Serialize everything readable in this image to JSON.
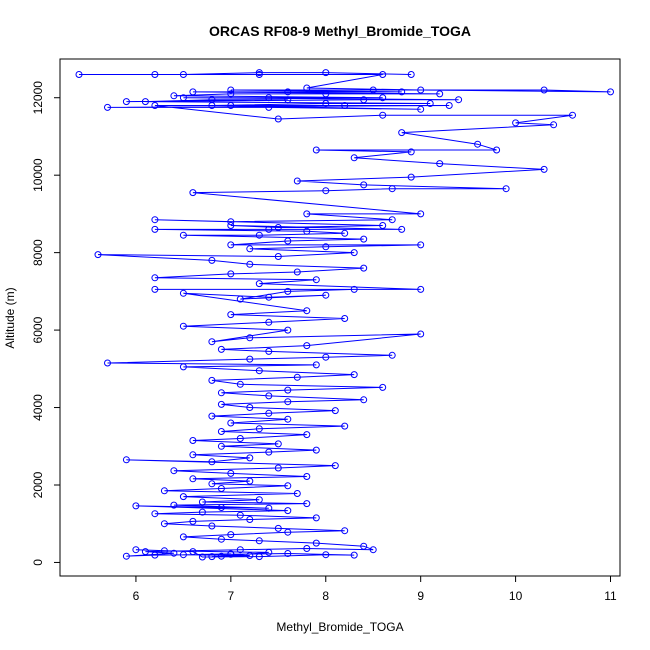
{
  "chart_data": {
    "type": "line",
    "title": "ORCAS RF08-9 Methyl_Bromide_TOGA",
    "xlabel": "Methyl_Bromide_TOGA",
    "ylabel": "Altitude (m)",
    "xlim": [
      5.2,
      11.1
    ],
    "ylim": [
      -350,
      13000
    ],
    "xticks": [
      6,
      7,
      8,
      9,
      10,
      11
    ],
    "yticks": [
      0,
      2000,
      4000,
      6000,
      8000,
      10000,
      12000
    ],
    "grid": false,
    "legend": "none",
    "marker": "open-circle",
    "series_color": "#0000ff",
    "series": [
      {
        "points": [
          [
            6.8,
            150
          ],
          [
            7.2,
            180
          ],
          [
            6.5,
            200
          ],
          [
            7.0,
            220
          ],
          [
            6.9,
            160
          ],
          [
            7.4,
            260
          ],
          [
            6.3,
            300
          ],
          [
            6.0,
            330
          ],
          [
            6.6,
            280
          ],
          [
            6.7,
            140
          ],
          [
            7.3,
            150
          ],
          [
            8.0,
            200
          ],
          [
            8.3,
            190
          ],
          [
            7.6,
            230
          ],
          [
            7.0,
            210
          ],
          [
            6.2,
            190
          ],
          [
            5.9,
            160
          ],
          [
            6.4,
            240
          ],
          [
            6.1,
            280
          ],
          [
            7.1,
            330
          ],
          [
            7.8,
            360
          ],
          [
            8.5,
            330
          ],
          [
            8.4,
            420
          ],
          [
            7.9,
            500
          ],
          [
            7.3,
            560
          ],
          [
            6.9,
            600
          ],
          [
            6.5,
            660
          ],
          [
            7.0,
            720
          ],
          [
            7.6,
            780
          ],
          [
            8.2,
            820
          ],
          [
            7.5,
            880
          ],
          [
            6.8,
            940
          ],
          [
            6.3,
            1000
          ],
          [
            6.6,
            1060
          ],
          [
            7.2,
            1110
          ],
          [
            7.9,
            1150
          ],
          [
            7.1,
            1220
          ],
          [
            6.2,
            1260
          ],
          [
            6.7,
            1300
          ],
          [
            7.6,
            1340
          ],
          [
            6.0,
            1460
          ],
          [
            6.9,
            1420
          ],
          [
            7.4,
            1400
          ],
          [
            6.4,
            1480
          ],
          [
            7.8,
            1520
          ],
          [
            6.7,
            1560
          ],
          [
            7.3,
            1620
          ],
          [
            6.5,
            1700
          ],
          [
            7.7,
            1780
          ],
          [
            6.3,
            1850
          ],
          [
            6.9,
            1910
          ],
          [
            7.6,
            1980
          ],
          [
            6.8,
            2030
          ],
          [
            7.2,
            2100
          ],
          [
            6.6,
            2160
          ],
          [
            7.8,
            2220
          ],
          [
            7.0,
            2300
          ],
          [
            6.4,
            2370
          ],
          [
            7.5,
            2440
          ],
          [
            8.1,
            2500
          ],
          [
            5.9,
            2650
          ],
          [
            6.8,
            2600
          ],
          [
            7.2,
            2700
          ],
          [
            6.6,
            2780
          ],
          [
            7.4,
            2850
          ],
          [
            7.9,
            2900
          ],
          [
            6.9,
            3000
          ],
          [
            7.5,
            3060
          ],
          [
            6.6,
            3150
          ],
          [
            7.1,
            3200
          ],
          [
            7.8,
            3300
          ],
          [
            6.9,
            3380
          ],
          [
            7.3,
            3450
          ],
          [
            8.2,
            3520
          ],
          [
            7.0,
            3600
          ],
          [
            7.6,
            3700
          ],
          [
            6.8,
            3780
          ],
          [
            7.4,
            3850
          ],
          [
            8.1,
            3920
          ],
          [
            7.2,
            4000
          ],
          [
            6.9,
            4080
          ],
          [
            7.6,
            4150
          ],
          [
            8.4,
            4200
          ],
          [
            7.4,
            4300
          ],
          [
            6.9,
            4380
          ],
          [
            7.6,
            4450
          ],
          [
            8.6,
            4520
          ],
          [
            7.1,
            4600
          ],
          [
            6.8,
            4700
          ],
          [
            7.7,
            4780
          ],
          [
            8.3,
            4850
          ],
          [
            7.3,
            4950
          ],
          [
            6.5,
            5050
          ],
          [
            7.9,
            5100
          ],
          [
            5.7,
            5150
          ],
          [
            7.2,
            5250
          ],
          [
            8.0,
            5300
          ],
          [
            8.7,
            5350
          ],
          [
            7.4,
            5450
          ],
          [
            6.9,
            5500
          ],
          [
            7.8,
            5600
          ],
          [
            9.0,
            5900
          ],
          [
            7.2,
            5800
          ],
          [
            6.8,
            5700
          ],
          [
            7.6,
            6000
          ],
          [
            6.5,
            6100
          ],
          [
            7.4,
            6200
          ],
          [
            8.2,
            6300
          ],
          [
            7.0,
            6400
          ],
          [
            7.8,
            6500
          ],
          [
            6.5,
            6950
          ],
          [
            7.4,
            6850
          ],
          [
            8.0,
            6900
          ],
          [
            7.1,
            6800
          ],
          [
            7.6,
            7000
          ],
          [
            8.3,
            7050
          ],
          [
            6.2,
            7050
          ],
          [
            9.0,
            7050
          ],
          [
            7.3,
            7200
          ],
          [
            7.9,
            7300
          ],
          [
            6.2,
            7350
          ],
          [
            7.0,
            7450
          ],
          [
            7.7,
            7500
          ],
          [
            8.4,
            7600
          ],
          [
            7.2,
            7700
          ],
          [
            6.8,
            7800
          ],
          [
            5.6,
            7950
          ],
          [
            7.5,
            7900
          ],
          [
            8.3,
            8000
          ],
          [
            7.2,
            8100
          ],
          [
            8.0,
            8150
          ],
          [
            9.0,
            8200
          ],
          [
            7.0,
            8200
          ],
          [
            7.6,
            8300
          ],
          [
            8.4,
            8350
          ],
          [
            6.5,
            8450
          ],
          [
            7.3,
            8450
          ],
          [
            8.2,
            8500
          ],
          [
            7.8,
            8550
          ],
          [
            6.2,
            8600
          ],
          [
            7.4,
            8600
          ],
          [
            8.8,
            8600
          ],
          [
            7.0,
            8700
          ],
          [
            7.5,
            8650
          ],
          [
            8.6,
            8700
          ],
          [
            6.2,
            8850
          ],
          [
            7.0,
            8800
          ],
          [
            8.7,
            8850
          ],
          [
            7.8,
            9000
          ],
          [
            9.0,
            9000
          ],
          [
            6.6,
            9550
          ],
          [
            8.0,
            9600
          ],
          [
            8.7,
            9650
          ],
          [
            9.9,
            9650
          ],
          [
            8.4,
            9750
          ],
          [
            7.7,
            9850
          ],
          [
            8.9,
            9950
          ],
          [
            10.3,
            10150
          ],
          [
            9.2,
            10300
          ],
          [
            8.3,
            10450
          ],
          [
            8.9,
            10600
          ],
          [
            7.9,
            10650
          ],
          [
            9.8,
            10650
          ],
          [
            9.6,
            10800
          ],
          [
            8.8,
            11100
          ],
          [
            10.4,
            11300
          ],
          [
            10.0,
            11350
          ],
          [
            10.6,
            11550
          ],
          [
            8.6,
            11550
          ],
          [
            7.5,
            11450
          ],
          [
            6.2,
            11800
          ],
          [
            7.0,
            11800
          ],
          [
            8.2,
            11800
          ],
          [
            9.3,
            11800
          ],
          [
            5.7,
            11750
          ],
          [
            7.4,
            11750
          ],
          [
            9.0,
            11700
          ],
          [
            6.8,
            11800
          ],
          [
            8.0,
            11850
          ],
          [
            9.1,
            11850
          ],
          [
            6.1,
            11900
          ],
          [
            6.8,
            11950
          ],
          [
            7.6,
            11950
          ],
          [
            5.9,
            11900
          ],
          [
            8.4,
            11950
          ],
          [
            9.4,
            11950
          ],
          [
            6.5,
            12000
          ],
          [
            7.4,
            12000
          ],
          [
            8.6,
            12000
          ],
          [
            6.4,
            12050
          ],
          [
            7.0,
            12100
          ],
          [
            8.0,
            12100
          ],
          [
            9.2,
            12100
          ],
          [
            6.6,
            12150
          ],
          [
            7.6,
            12150
          ],
          [
            8.8,
            12150
          ],
          [
            7.0,
            12200
          ],
          [
            8.5,
            12200
          ],
          [
            10.3,
            12200
          ],
          [
            11.0,
            12150
          ],
          [
            9.0,
            12200
          ],
          [
            7.8,
            12250
          ],
          [
            8.6,
            12600
          ],
          [
            7.3,
            12600
          ],
          [
            6.2,
            12600
          ],
          [
            5.4,
            12600
          ],
          [
            6.5,
            12600
          ],
          [
            7.3,
            12650
          ],
          [
            8.0,
            12650
          ],
          [
            8.9,
            12600
          ]
        ]
      }
    ]
  }
}
